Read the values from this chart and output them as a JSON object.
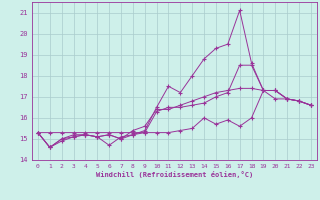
{
  "xlabel": "Windchill (Refroidissement éolien,°C)",
  "bg_color": "#cef0ea",
  "grid_color": "#aacccc",
  "line_color": "#993399",
  "xlim": [
    -0.5,
    23.5
  ],
  "ylim": [
    14.0,
    21.5
  ],
  "yticks": [
    14,
    15,
    16,
    17,
    18,
    19,
    20,
    21
  ],
  "xticks": [
    0,
    1,
    2,
    3,
    4,
    5,
    6,
    7,
    8,
    9,
    10,
    11,
    12,
    13,
    14,
    15,
    16,
    17,
    18,
    19,
    20,
    21,
    22,
    23
  ],
  "series": [
    [
      15.3,
      15.3,
      15.3,
      15.3,
      15.3,
      15.3,
      15.3,
      15.3,
      15.3,
      15.3,
      16.3,
      16.5,
      16.5,
      16.6,
      16.7,
      17.0,
      17.2,
      18.5,
      18.5,
      17.3,
      17.3,
      16.9,
      16.8,
      16.6
    ],
    [
      15.3,
      14.6,
      14.9,
      15.1,
      15.2,
      15.1,
      14.7,
      15.1,
      15.2,
      15.3,
      15.3,
      15.3,
      15.4,
      15.5,
      16.0,
      15.7,
      15.9,
      15.6,
      16.0,
      17.3,
      17.3,
      16.9,
      16.8,
      16.6
    ],
    [
      15.3,
      14.6,
      15.0,
      15.1,
      15.2,
      15.1,
      15.2,
      15.0,
      15.2,
      15.4,
      16.5,
      17.5,
      17.2,
      18.0,
      18.8,
      19.3,
      19.5,
      21.1,
      18.6,
      17.3,
      17.3,
      16.9,
      16.8,
      16.6
    ],
    [
      15.3,
      14.6,
      15.0,
      15.2,
      15.2,
      15.1,
      15.2,
      15.0,
      15.4,
      15.6,
      16.4,
      16.4,
      16.6,
      16.8,
      17.0,
      17.2,
      17.3,
      17.4,
      17.4,
      17.3,
      16.9,
      16.9,
      16.8,
      16.6
    ]
  ]
}
